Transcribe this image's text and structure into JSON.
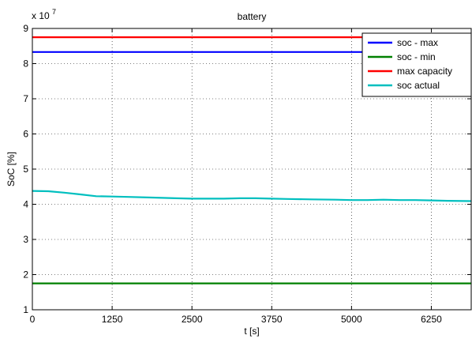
{
  "chart_data": {
    "type": "line",
    "title": "battery",
    "xlabel": "t [s]",
    "ylabel": "SoC [%]",
    "y_exponent_label": "x 10",
    "y_exponent_power": "7",
    "xlim": [
      0,
      6875
    ],
    "ylim": [
      1,
      9
    ],
    "x_ticks": [
      0,
      1250,
      2500,
      3750,
      5000,
      6250
    ],
    "y_ticks": [
      1,
      2,
      3,
      4,
      5,
      6,
      7,
      8,
      9
    ],
    "grid": true,
    "legend_position": "top-right",
    "series": [
      {
        "name": "soc - max",
        "color": "#0000ff",
        "x": [
          0,
          6875
        ],
        "y": [
          8.33,
          8.33
        ]
      },
      {
        "name": "soc - min",
        "color": "#008000",
        "x": [
          0,
          6875
        ],
        "y": [
          1.75,
          1.75
        ]
      },
      {
        "name": "max capacity",
        "color": "#ff0000",
        "x": [
          0,
          6875
        ],
        "y": [
          8.75,
          8.75
        ]
      },
      {
        "name": "soc actual",
        "color": "#00bfbf",
        "x": [
          0,
          250,
          500,
          750,
          1000,
          1250,
          1500,
          1875,
          2250,
          2500,
          2750,
          3000,
          3250,
          3500,
          3750,
          4000,
          4375,
          4750,
          5000,
          5250,
          5500,
          5750,
          6000,
          6250,
          6500,
          6875
        ],
        "y": [
          4.38,
          4.37,
          4.33,
          4.28,
          4.23,
          4.22,
          4.21,
          4.19,
          4.17,
          4.16,
          4.16,
          4.16,
          4.17,
          4.17,
          4.16,
          4.15,
          4.14,
          4.13,
          4.12,
          4.12,
          4.13,
          4.12,
          4.12,
          4.11,
          4.1,
          4.09
        ]
      }
    ]
  }
}
